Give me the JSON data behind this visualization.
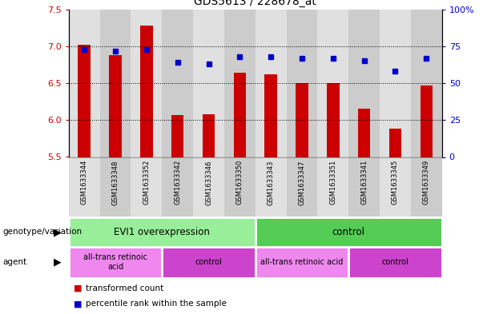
{
  "title": "GDS5613 / 228678_at",
  "samples": [
    "GSM1633344",
    "GSM1633348",
    "GSM1633352",
    "GSM1633342",
    "GSM1633346",
    "GSM1633350",
    "GSM1633343",
    "GSM1633347",
    "GSM1633351",
    "GSM1633341",
    "GSM1633345",
    "GSM1633349"
  ],
  "bar_values": [
    7.02,
    6.88,
    7.28,
    6.07,
    6.08,
    6.64,
    6.62,
    6.5,
    6.5,
    6.15,
    5.88,
    6.47
  ],
  "dot_values": [
    73,
    72,
    73,
    64,
    63,
    68,
    68,
    67,
    67,
    65,
    58,
    67
  ],
  "ymin": 5.5,
  "ymax": 7.5,
  "yticks": [
    5.5,
    6.0,
    6.5,
    7.0,
    7.5
  ],
  "right_yticks": [
    0,
    25,
    50,
    75,
    100
  ],
  "bar_color": "#cc0000",
  "dot_color": "#0000cc",
  "genotype_groups": [
    {
      "label": "EVI1 overexpression",
      "start": 0,
      "end": 6,
      "color": "#99ee99"
    },
    {
      "label": "control",
      "start": 6,
      "end": 12,
      "color": "#55cc55"
    }
  ],
  "agent_groups": [
    {
      "label": "all-trans retinoic\nacid",
      "start": 0,
      "end": 3,
      "color": "#ee88ee"
    },
    {
      "label": "control",
      "start": 3,
      "end": 6,
      "color": "#cc44cc"
    },
    {
      "label": "all-trans retinoic acid",
      "start": 6,
      "end": 9,
      "color": "#ee88ee"
    },
    {
      "label": "control",
      "start": 9,
      "end": 12,
      "color": "#cc44cc"
    }
  ],
  "legend_bar_label": "transformed count",
  "legend_dot_label": "percentile rank within the sample",
  "tick_label_color": "#cc0000",
  "right_tick_label_color": "#0000cc",
  "col_bg_even": "#e0e0e0",
  "col_bg_odd": "#cccccc"
}
